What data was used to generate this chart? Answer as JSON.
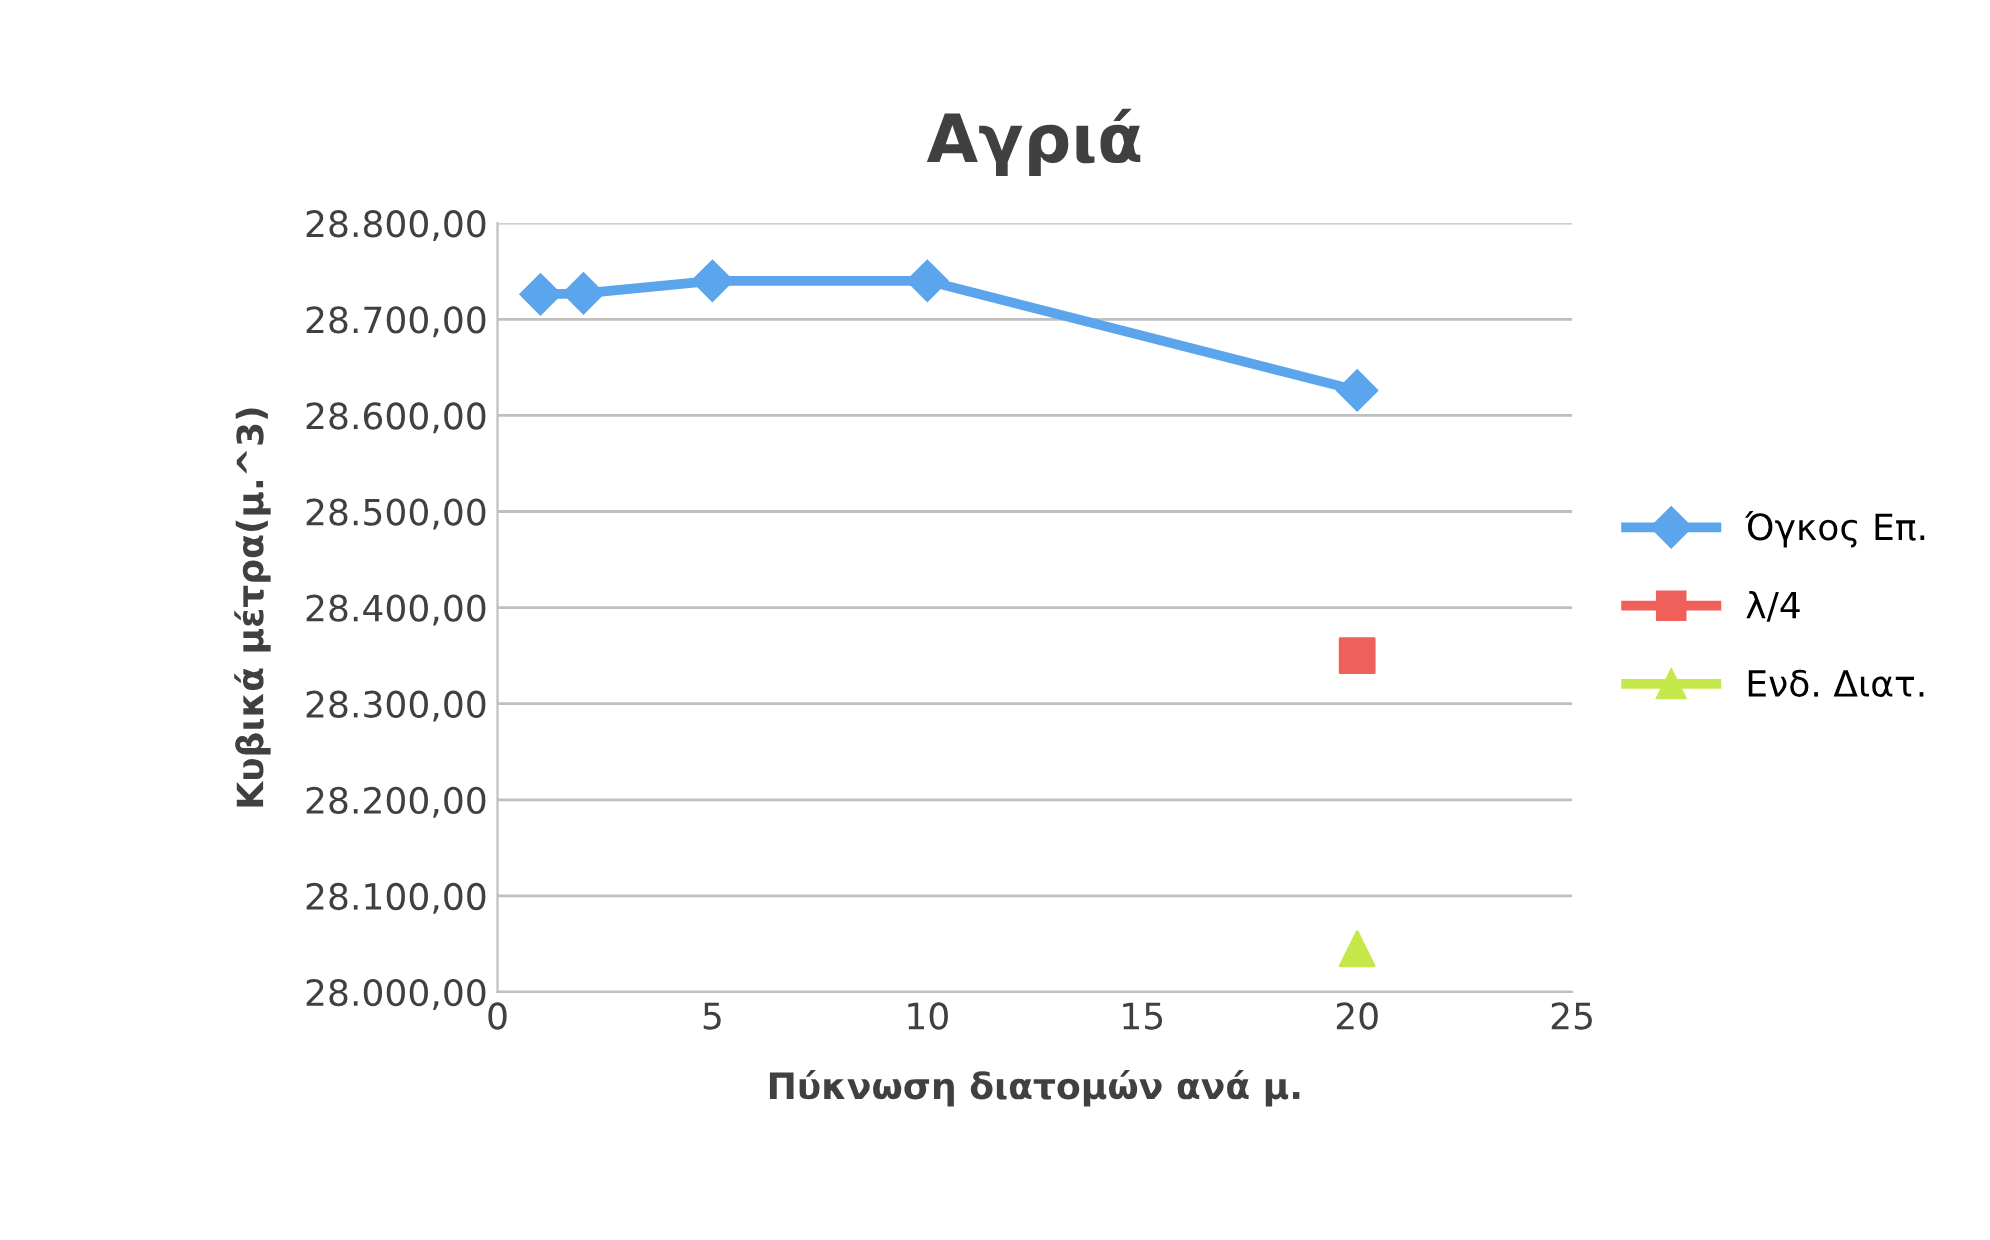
{
  "chart_data": {
    "type": "line",
    "title": "Αγριά",
    "xlabel": "Πύκνωση διατομών ανά μ.",
    "ylabel": "Κυβικά μέτρα(μ.^3)",
    "series": [
      {
        "name": "Όγκος Επ.",
        "color": "#5aa5ec",
        "marker": "diamond",
        "x": [
          1,
          2,
          5,
          10,
          20
        ],
        "values": [
          28726,
          28727,
          28740,
          28740,
          28626
        ]
      },
      {
        "name": "λ/4",
        "type": "scatter",
        "color": "#f0605a",
        "marker": "square",
        "x": [
          20
        ],
        "values": [
          28350
        ]
      },
      {
        "name": "Ενδ. Διατ.",
        "type": "scatter",
        "color": "#c5e84a",
        "marker": "triangle",
        "x": [
          20
        ],
        "values": [
          28045
        ]
      }
    ],
    "xlim": [
      0,
      25
    ],
    "xticks": [
      0,
      5,
      10,
      15,
      20,
      25
    ],
    "ylim": [
      28000,
      28800
    ],
    "yticks": [
      {
        "value": 28000,
        "label": "28.000,00"
      },
      {
        "value": 28100,
        "label": "28.100,00"
      },
      {
        "value": 28200,
        "label": "28.200,00"
      },
      {
        "value": 28300,
        "label": "28.300,00"
      },
      {
        "value": 28400,
        "label": "28.400,00"
      },
      {
        "value": 28500,
        "label": "28.500,00"
      },
      {
        "value": 28600,
        "label": "28.600,00"
      },
      {
        "value": 28700,
        "label": "28.700,00"
      },
      {
        "value": 28800,
        "label": "28.800,00"
      }
    ],
    "grid": "y",
    "legend": "right"
  }
}
